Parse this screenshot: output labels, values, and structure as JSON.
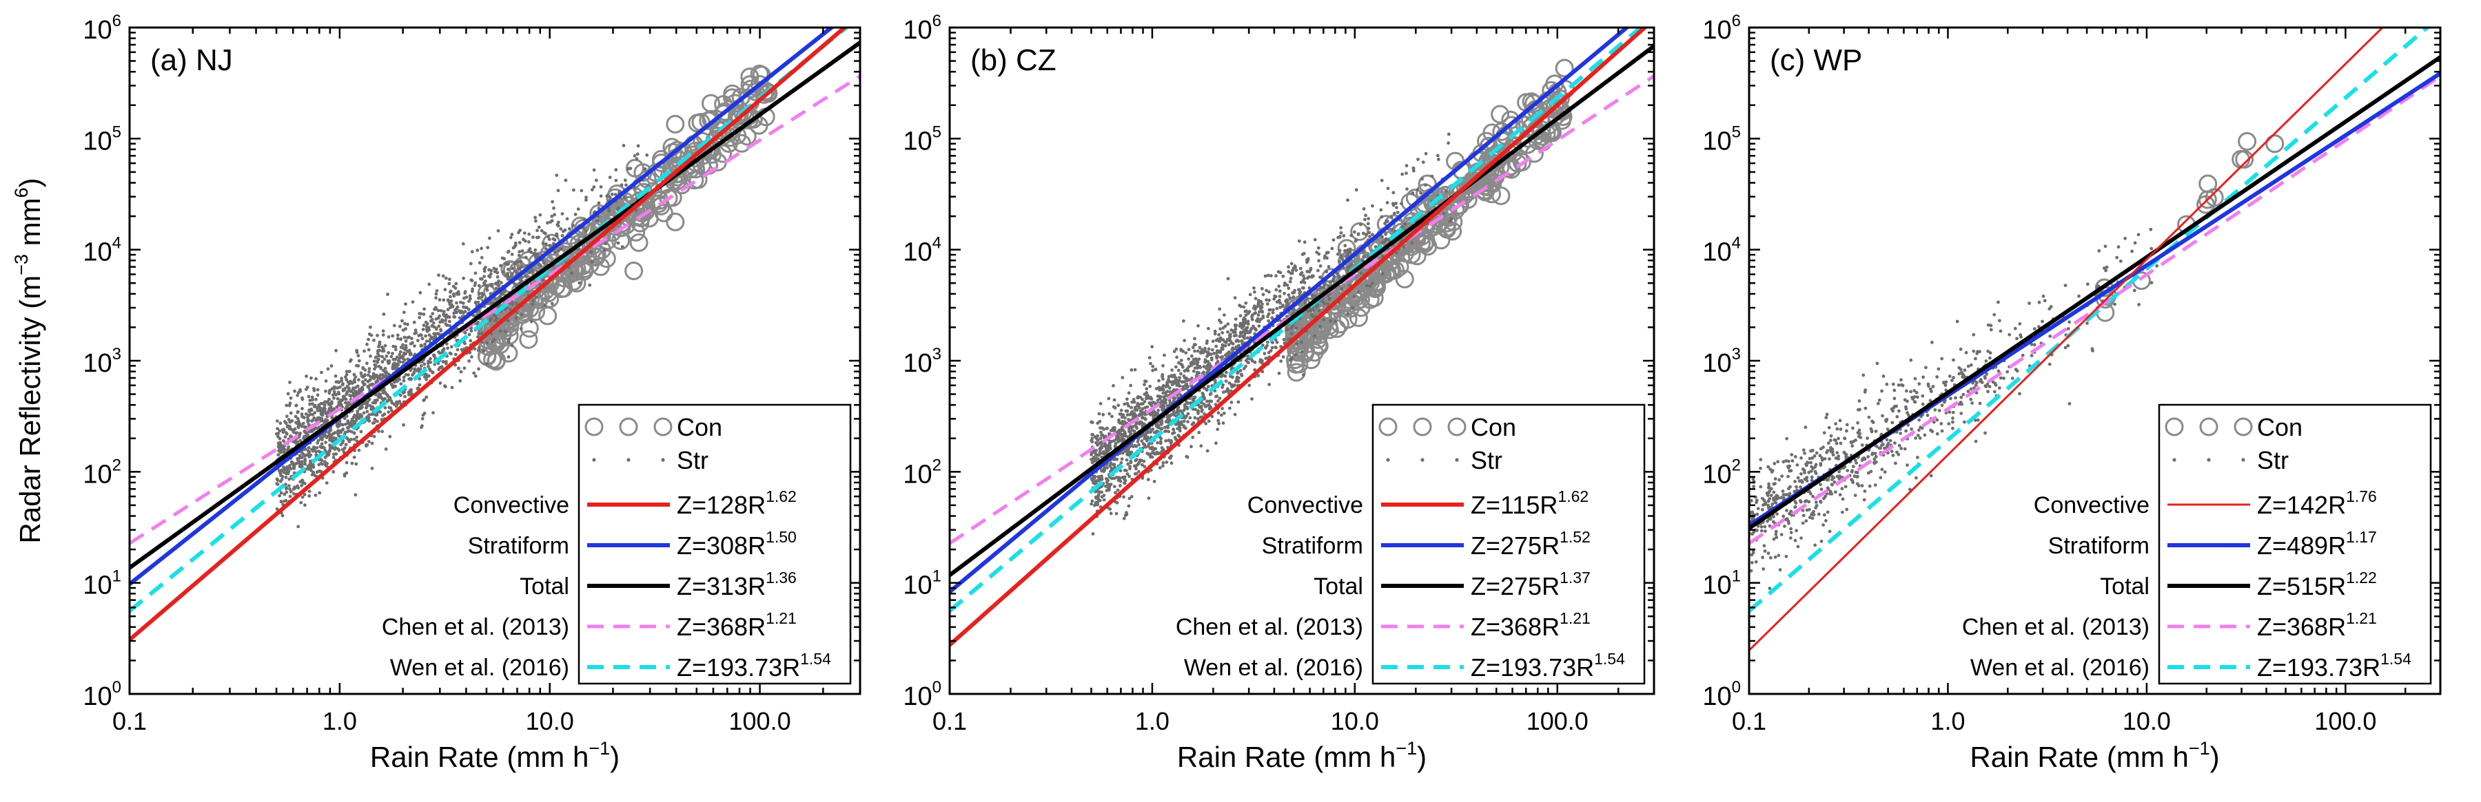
{
  "chart_data": [
    {
      "type": "scatter",
      "panel_label": "(a) NJ",
      "xlabel": "Rain Rate",
      "xlabel_unit": "(mm h",
      "xlabel_unit_exp": "−1",
      "ylabel": "Radar Reflectivity",
      "ylabel_unit": "(m",
      "ylabel_unit_exp1": "−3",
      "ylabel_unit_mid": " mm",
      "ylabel_unit_exp2": "6",
      "xscale": "log",
      "yscale": "log",
      "xlim": [
        0.1,
        300
      ],
      "ylim": [
        1,
        1000000
      ],
      "x_ticks": [
        0.1,
        1,
        10,
        100
      ],
      "x_tick_labels": [
        "0.1",
        "1.0",
        "10.0",
        "100.0"
      ],
      "y_ticks": [
        1,
        10,
        100,
        1000,
        10000,
        100000,
        1000000
      ],
      "y_tick_bases": [
        "10",
        "10",
        "10",
        "10",
        "10",
        "10",
        "10"
      ],
      "y_tick_exps": [
        "0",
        "1",
        "2",
        "3",
        "4",
        "5",
        "6"
      ],
      "legend_position": "bottom-right",
      "scatter_series": [
        {
          "name": "Con",
          "marker": "open-circle",
          "color": "#8a8a8a",
          "approx_x_range": [
            5,
            110
          ],
          "approx_count": 320,
          "seed": 11
        },
        {
          "name": "Str",
          "marker": "dot",
          "color": "#6e6e6e",
          "approx_x_range": [
            0.5,
            30
          ],
          "approx_count": 2000,
          "seed": 12
        }
      ],
      "fits": [
        {
          "row_label": "Convective",
          "a": 128,
          "b": 1.62,
          "text": "Z=128R",
          "exp": "1.62",
          "color": "#e8211d",
          "style": "solid",
          "width": 6
        },
        {
          "row_label": "Stratiform",
          "a": 308,
          "b": 1.5,
          "text": "Z=308R",
          "exp": "1.50",
          "color": "#1f36e0",
          "style": "solid",
          "width": 6
        },
        {
          "row_label": "Total",
          "a": 313,
          "b": 1.36,
          "text": "Z=313R",
          "exp": "1.36",
          "color": "#000000",
          "style": "solid",
          "width": 6
        },
        {
          "row_label": "Chen et al. (2013)",
          "a": 368,
          "b": 1.21,
          "text": "Z=368R",
          "exp": "1.21",
          "color": "#f27ef0",
          "style": "dashed",
          "width": 5
        },
        {
          "row_label": "Wen et al. (2016)",
          "a": 193.73,
          "b": 1.54,
          "text": "Z=193.73R",
          "exp": "1.54",
          "color": "#19e0e8",
          "style": "dashed",
          "width": 6
        }
      ]
    },
    {
      "type": "scatter",
      "panel_label": "(b) CZ",
      "xlabel": "Rain Rate",
      "xlabel_unit": "(mm h",
      "xlabel_unit_exp": "−1",
      "xscale": "log",
      "yscale": "log",
      "xlim": [
        0.1,
        300
      ],
      "ylim": [
        1,
        1000000
      ],
      "x_ticks": [
        0.1,
        1,
        10,
        100
      ],
      "x_tick_labels": [
        "0.1",
        "1.0",
        "10.0",
        "100.0"
      ],
      "y_ticks": [
        1,
        10,
        100,
        1000,
        10000,
        100000,
        1000000
      ],
      "y_tick_bases": [
        "10",
        "10",
        "10",
        "10",
        "10",
        "10",
        "10"
      ],
      "y_tick_exps": [
        "0",
        "1",
        "2",
        "3",
        "4",
        "5",
        "6"
      ],
      "legend_position": "bottom-right",
      "scatter_series": [
        {
          "name": "Con",
          "marker": "open-circle",
          "color": "#8a8a8a",
          "approx_x_range": [
            5,
            110
          ],
          "approx_count": 360,
          "seed": 21
        },
        {
          "name": "Str",
          "marker": "dot",
          "color": "#6e6e6e",
          "approx_x_range": [
            0.5,
            30
          ],
          "approx_count": 2000,
          "seed": 22
        }
      ],
      "fits": [
        {
          "row_label": "Convective",
          "a": 115,
          "b": 1.62,
          "text": "Z=115R",
          "exp": "1.62",
          "color": "#e8211d",
          "style": "solid",
          "width": 6
        },
        {
          "row_label": "Stratiform",
          "a": 275,
          "b": 1.52,
          "text": "Z=275R",
          "exp": "1.52",
          "color": "#1f36e0",
          "style": "solid",
          "width": 6
        },
        {
          "row_label": "Total",
          "a": 275,
          "b": 1.37,
          "text": "Z=275R",
          "exp": "1.37",
          "color": "#000000",
          "style": "solid",
          "width": 6
        },
        {
          "row_label": "Chen et al. (2013)",
          "a": 368,
          "b": 1.21,
          "text": "Z=368R",
          "exp": "1.21",
          "color": "#f27ef0",
          "style": "dashed",
          "width": 5
        },
        {
          "row_label": "Wen et al. (2016)",
          "a": 193.73,
          "b": 1.54,
          "text": "Z=193.73R",
          "exp": "1.54",
          "color": "#19e0e8",
          "style": "dashed",
          "width": 6
        }
      ]
    },
    {
      "type": "scatter",
      "panel_label": "(c) WP",
      "xlabel": "Rain Rate",
      "xlabel_unit": "(mm h",
      "xlabel_unit_exp": "−1",
      "xscale": "log",
      "yscale": "log",
      "xlim": [
        0.1,
        300
      ],
      "ylim": [
        1,
        1000000
      ],
      "x_ticks": [
        0.1,
        1,
        10,
        100
      ],
      "x_tick_labels": [
        "0.1",
        "1.0",
        "10.0",
        "100.0"
      ],
      "y_ticks": [
        1,
        10,
        100,
        1000,
        10000,
        100000,
        1000000
      ],
      "y_tick_bases": [
        "10",
        "10",
        "10",
        "10",
        "10",
        "10",
        "10"
      ],
      "y_tick_exps": [
        "0",
        "1",
        "2",
        "3",
        "4",
        "5",
        "6"
      ],
      "legend_position": "bottom-right",
      "scatter_series": [
        {
          "name": "Con",
          "marker": "open-circle",
          "color": "#8a8a8a",
          "approx_x_range": [
            6,
            50
          ],
          "approx_count": 14,
          "seed": 31
        },
        {
          "name": "Str",
          "marker": "dot",
          "color": "#6e6e6e",
          "approx_x_range": [
            0.1,
            12
          ],
          "approx_count": 800,
          "seed": 32
        }
      ],
      "fits": [
        {
          "row_label": "Convective",
          "a": 142,
          "b": 1.76,
          "text": "Z=142R",
          "exp": "1.76",
          "color": "#e8211d",
          "style": "solid",
          "width": 3
        },
        {
          "row_label": "Stratiform",
          "a": 489,
          "b": 1.17,
          "text": "Z=489R",
          "exp": "1.17",
          "color": "#1f36e0",
          "style": "solid",
          "width": 6
        },
        {
          "row_label": "Total",
          "a": 515,
          "b": 1.22,
          "text": "Z=515R",
          "exp": "1.22",
          "color": "#000000",
          "style": "solid",
          "width": 6
        },
        {
          "row_label": "Chen et al. (2013)",
          "a": 368,
          "b": 1.21,
          "text": "Z=368R",
          "exp": "1.21",
          "color": "#f27ef0",
          "style": "dashed",
          "width": 5
        },
        {
          "row_label": "Wen et al. (2016)",
          "a": 193.73,
          "b": 1.54,
          "text": "Z=193.73R",
          "exp": "1.54",
          "color": "#19e0e8",
          "style": "dashed",
          "width": 6
        }
      ]
    }
  ]
}
